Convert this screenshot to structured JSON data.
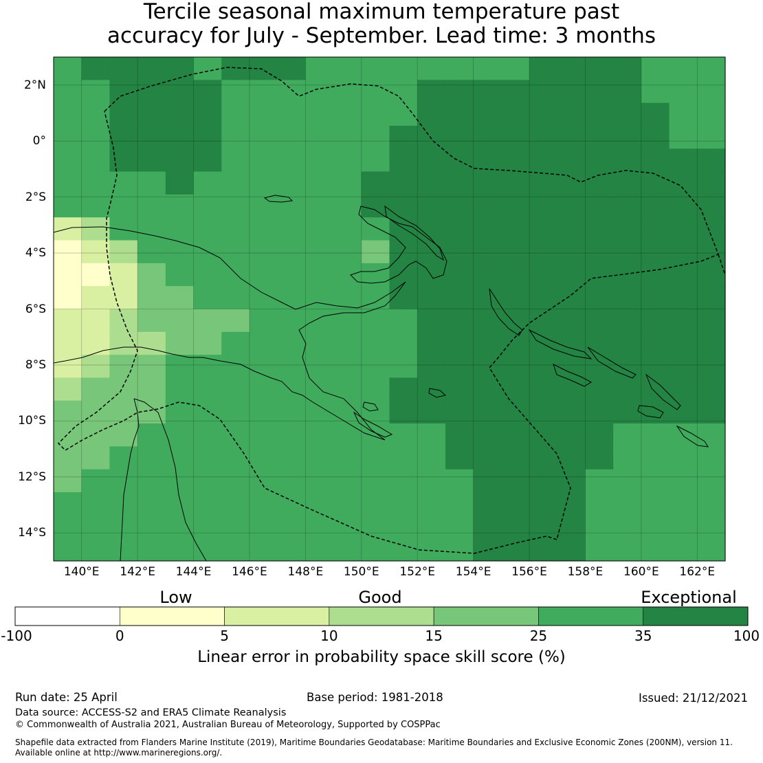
{
  "title": {
    "line1": "Tercile seasonal maximum temperature past",
    "line2": "accuracy for July - September. Lead time: 3 months"
  },
  "map": {
    "lon_range": [
      139.0,
      163.0
    ],
    "lat_range": [
      -15.0,
      3.0
    ],
    "cell_size_deg": 0.84,
    "x_ticks": [
      {
        "label": "140°E",
        "value": 140
      },
      {
        "label": "142°E",
        "value": 142
      },
      {
        "label": "144°E",
        "value": 144
      },
      {
        "label": "146°E",
        "value": 146
      },
      {
        "label": "148°E",
        "value": 148
      },
      {
        "label": "150°E",
        "value": 150
      },
      {
        "label": "152°E",
        "value": 152
      },
      {
        "label": "154°E",
        "value": 154
      },
      {
        "label": "156°E",
        "value": 156
      },
      {
        "label": "158°E",
        "value": 158
      },
      {
        "label": "160°E",
        "value": 160
      },
      {
        "label": "162°E",
        "value": 162
      }
    ],
    "y_ticks": [
      {
        "label": "2°N",
        "value": 2
      },
      {
        "label": "0°",
        "value": 0
      },
      {
        "label": "2°S",
        "value": -2
      },
      {
        "label": "4°S",
        "value": -4
      },
      {
        "label": "6°S",
        "value": -6
      },
      {
        "label": "8°S",
        "value": -8
      },
      {
        "label": "10°S",
        "value": -10
      },
      {
        "label": "12°S",
        "value": -12
      },
      {
        "label": "14°S",
        "value": -14
      }
    ],
    "grid_class_rows": [
      "455554555444444445555444",
      "445555444444455555555444",
      "445555444444455555555544",
      "445555444444555555555544",
      "445555444444555555555555",
      "444454444445555555555555",
      "444444444445555555555555",
      "124444444444555555555555",
      "012444444443555555555555",
      "001344444444555555555555",
      "011334444444555555555555",
      "112333344444455555555555",
      "112233444444455555555555",
      "123344444444455555555555",
      "233344444444555555555555",
      "333344444444555555555555",
      "333444444444445555554444",
      "334444444444445555554444",
      "344444444444444555544444",
      "444444444444444555544444",
      "444444444444444555544444",
      "444444444444444555544444"
    ]
  },
  "colorbar": {
    "category_labels": {
      "low": "Low",
      "good": "Good",
      "exceptional": "Exceptional"
    },
    "bins": [
      {
        "from": -100,
        "to": 0,
        "color": "#ffffff"
      },
      {
        "from": 0,
        "to": 5,
        "color": "#ffffcc"
      },
      {
        "from": 5,
        "to": 10,
        "color": "#d9f0a3"
      },
      {
        "from": 10,
        "to": 15,
        "color": "#addd8e"
      },
      {
        "from": 15,
        "to": 25,
        "color": "#78c679"
      },
      {
        "from": 25,
        "to": 35,
        "color": "#41ab5d"
      },
      {
        "from": 35,
        "to": 100,
        "color": "#238443"
      }
    ],
    "tick_labels": [
      "-100",
      "0",
      "5",
      "10",
      "15",
      "25",
      "35",
      "100"
    ],
    "label": "Linear error in probability space skill score (%)"
  },
  "footer": {
    "run_date": "Run date: 25 April",
    "base_period": "Base period: 1981-2018",
    "issued": "Issued: 21/12/2021",
    "data_source": "Data source: ACCESS-S2 and ERA5 Climate Reanalysis",
    "copyright": "© Commonwealth of Australia 2021, Australian Bureau of Meteorology, Supported by COSPPac",
    "shapefile_line1": "Shapefile data extracted from Flanders Marine Institute (2019), Maritime Boundaries Geodatabase: Maritime Boundaries and Exclusive Economic Zones (200NM), version 11.",
    "shapefile_line2": "Available online at http://www.marineregions.org/."
  }
}
